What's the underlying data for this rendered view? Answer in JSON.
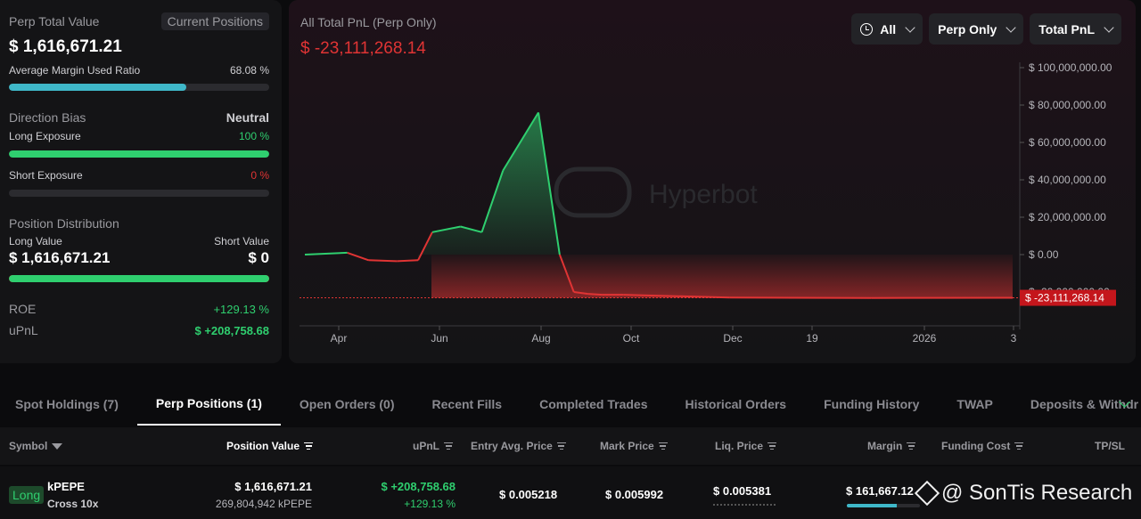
{
  "left": {
    "perp_total_value_label": "Perp Total Value",
    "current_positions_label": "Current Positions",
    "perp_total_value": "$ 1,616,671.21",
    "avg_margin_label": "Average Margin Used Ratio",
    "avg_margin_value": "68.08 %",
    "avg_margin_fraction": 0.68,
    "direction_bias_label": "Direction Bias",
    "direction_bias_value": "Neutral",
    "long_exposure_label": "Long Exposure",
    "long_exposure_value": "100 %",
    "long_exposure_fraction": 1.0,
    "short_exposure_label": "Short Exposure",
    "short_exposure_value": "0 %",
    "short_exposure_fraction": 0.0,
    "position_distribution_label": "Position Distribution",
    "long_value_label": "Long Value",
    "short_value_label": "Short Value",
    "long_value": "$ 1,616,671.21",
    "short_value": "$ 0",
    "distribution_long_fraction": 1.0,
    "roe_label": "ROE",
    "roe_value": "+129.13 %",
    "upnl_label": "uPnL",
    "upnl_value": "$ +208,758.68"
  },
  "chart_panel": {
    "title": "All Total PnL (Perp Only)",
    "total_value": "$ -23,111,268.14",
    "watermark": "Hyperbot",
    "dropdowns": [
      "All",
      "Perp Only",
      "Total PnL"
    ]
  },
  "chart_data": {
    "type": "area",
    "x_ticks": [
      "Apr",
      "Jun",
      "Aug",
      "Oct",
      "Dec",
      "19",
      "2026",
      "3"
    ],
    "y_ticks": [
      "$ 100,000,000.00",
      "$ 80,000,000.00",
      "$ 60,000,000.00",
      "$ 40,000,000.00",
      "$ 20,000,000.00",
      "$ 0.00",
      "$ -20,000,000.00"
    ],
    "y_tick_values": [
      100000000,
      80000000,
      60000000,
      40000000,
      20000000,
      0,
      -20000000
    ],
    "current_label": "$ -23,111,268.14",
    "current_value": -23111268.14,
    "x": [
      0,
      0.06,
      0.09,
      0.13,
      0.16,
      0.18,
      0.22,
      0.25,
      0.28,
      0.33,
      0.36,
      0.38,
      0.4,
      0.42,
      0.45,
      0.5,
      0.6,
      0.8,
      1.0
    ],
    "y": [
      0,
      1000000,
      -3000000,
      -3500000,
      -3000000,
      12000000,
      15000000,
      12000000,
      45000000,
      76000000,
      0,
      -20000000,
      -21000000,
      -21500000,
      -21500000,
      -22000000,
      -23000000,
      -23200000,
      -23111268
    ],
    "ylim": [
      -25000000,
      100000000
    ],
    "grid": false
  },
  "tabs": [
    "Spot Holdings (7)",
    "Perp Positions (1)",
    "Open Orders (0)",
    "Recent Fills",
    "Completed Trades",
    "Historical Orders",
    "Funding History",
    "TWAP",
    "Deposits & Withdraw"
  ],
  "table": {
    "headers": {
      "symbol": "Symbol",
      "position_value": "Position Value",
      "upnl": "uPnL",
      "entry": "Entry Avg. Price",
      "mark": "Mark Price",
      "liq": "Liq. Price",
      "margin": "Margin",
      "funding": "Funding Cost",
      "tpsl": "TP/SL"
    },
    "row": {
      "side": "Long",
      "symbol": "kPEPE",
      "mode": "Cross 10x",
      "position_value": "$ 1,616,671.21",
      "position_size": "269,804,942 kPEPE",
      "upnl": "$ +208,758.68",
      "upnl_pct": "+129.13 %",
      "entry": "$ 0.005218",
      "mark": "$ 0.005992",
      "liq": "$ 0.005381",
      "margin": "$ 161,667.12",
      "margin_fraction": 0.68
    }
  },
  "watermark_text": "@ SonTis Research",
  "colors": {
    "green": "#2fcf6f",
    "red": "#e03434",
    "teal": "#3fb8c9"
  }
}
